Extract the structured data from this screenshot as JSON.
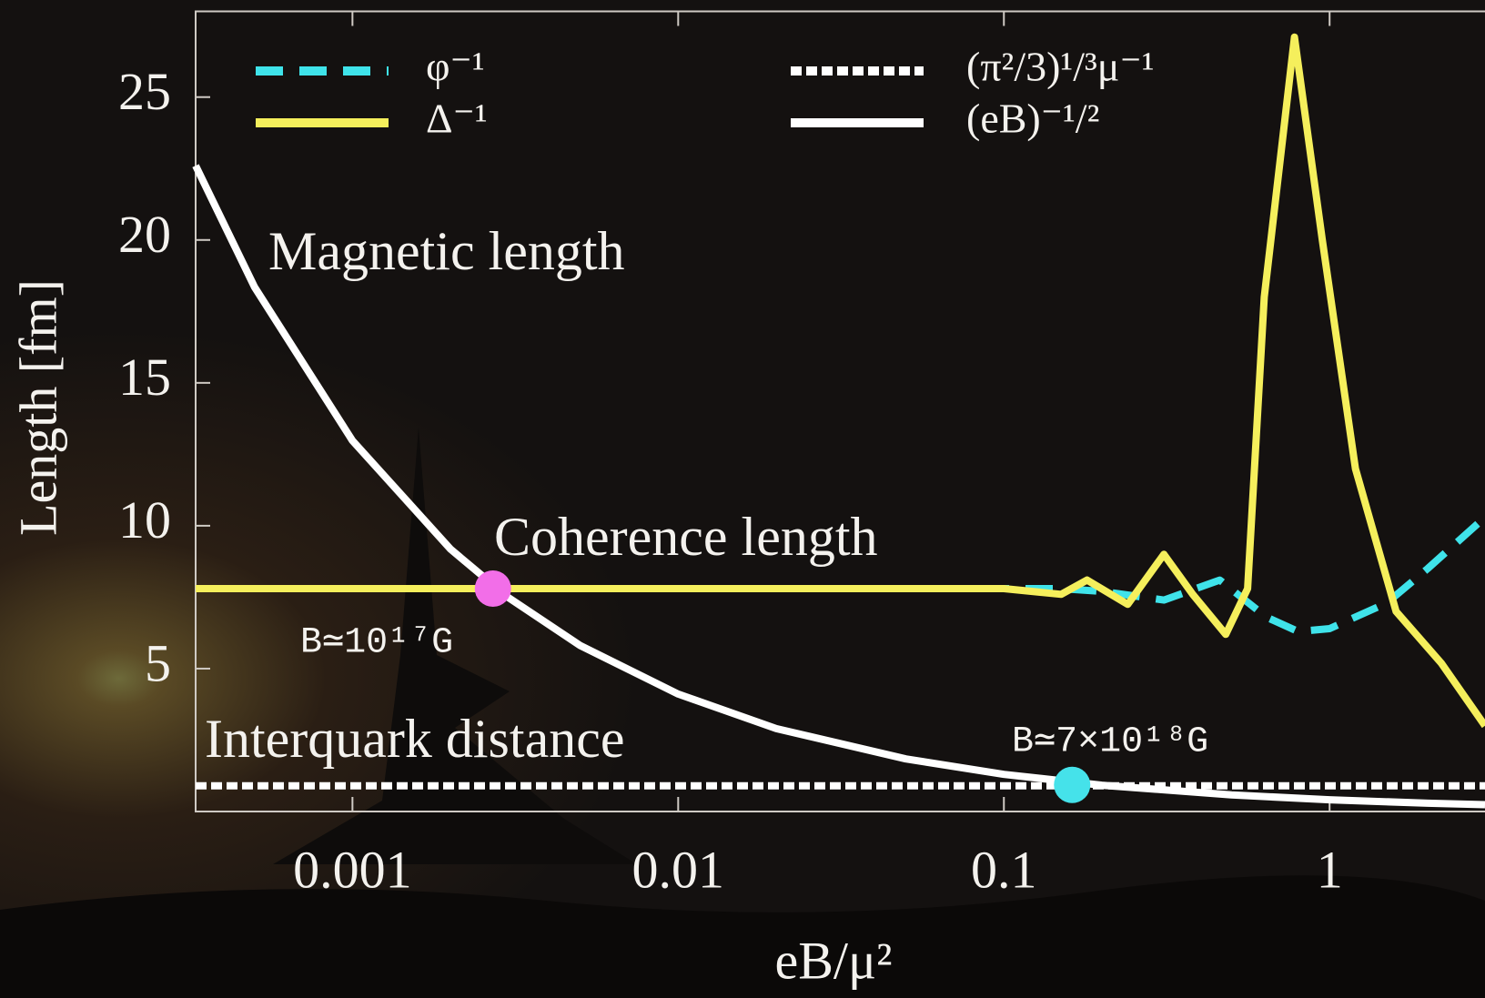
{
  "chart_data": {
    "type": "line",
    "x_label": "eB/μ²",
    "y_label": "Length [fm]",
    "log_x": true,
    "xlim": [
      0.00033,
      3
    ],
    "xticks": [
      0.001,
      0.01,
      0.1,
      1
    ],
    "ylim": [
      0,
      28
    ],
    "yticks": [
      5,
      10,
      15,
      20,
      25
    ],
    "series": [
      {
        "name": "φ⁻¹",
        "color": "#3fe3ea",
        "style": "dashed",
        "x": [
          0.00033,
          0.1,
          0.15,
          0.2,
          0.31,
          0.46,
          0.64,
          0.8,
          1.0,
          1.5,
          2,
          3
        ],
        "values": [
          7.8,
          7.8,
          7.8,
          7.7,
          7.4,
          8.1,
          6.8,
          6.3,
          6.4,
          7.3,
          8.5,
          10.3
        ]
      },
      {
        "name": "Δ⁻¹",
        "color": "#f5ef5c",
        "style": "solid",
        "x": [
          0.00033,
          0.1,
          0.15,
          0.18,
          0.24,
          0.31,
          0.38,
          0.48,
          0.56,
          0.63,
          0.78,
          0.95,
          1.2,
          1.6,
          2.2,
          3
        ],
        "values": [
          7.8,
          7.8,
          7.6,
          8.1,
          7.25,
          9.0,
          7.6,
          6.2,
          7.8,
          18,
          27.1,
          20,
          12,
          7,
          5.2,
          3.0
        ]
      },
      {
        "name": "(π²/3)¹/³μ⁻¹",
        "color": "#ffffff",
        "style": "dotted",
        "x": [
          0.00033,
          3
        ],
        "values": [
          0.9,
          0.9
        ]
      },
      {
        "name": "(eB)⁻¹/²",
        "color": "#ffffff",
        "style": "solid",
        "x": [
          0.00033,
          0.0005,
          0.001,
          0.002,
          0.003,
          0.005,
          0.01,
          0.02,
          0.05,
          0.1,
          0.2,
          0.5,
          1,
          2,
          3
        ],
        "values": [
          22.6,
          18.36,
          12.98,
          9.18,
          7.5,
          5.81,
          4.11,
          2.9,
          1.84,
          1.3,
          0.92,
          0.58,
          0.41,
          0.29,
          0.24
        ]
      }
    ],
    "annotations": [
      "Magnetic length",
      "Coherence length",
      "Interquark distance"
    ],
    "points": [
      {
        "x": 0.0027,
        "y": 7.8,
        "label": "B≃10¹⁷G",
        "color": "#f26ee8"
      },
      {
        "x": 0.162,
        "y": 0.93,
        "label": "B≃7×10¹⁸G",
        "color": "#45e2ea"
      }
    ]
  }
}
